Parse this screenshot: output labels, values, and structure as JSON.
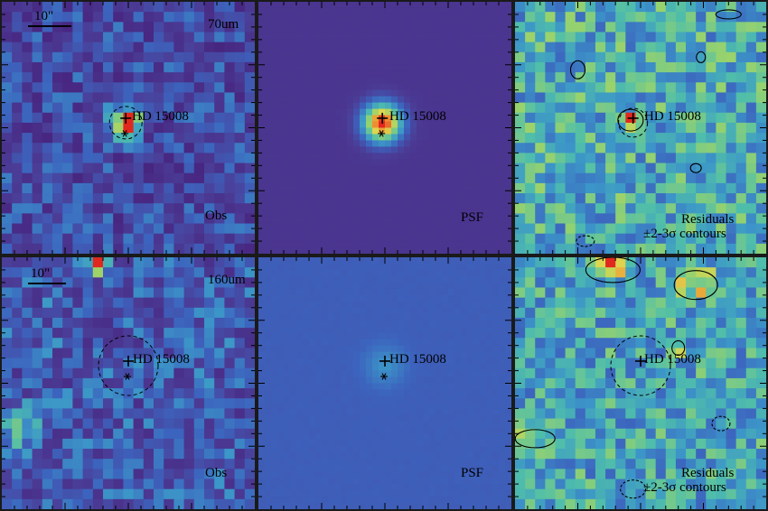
{
  "rows": [
    {
      "wavelength": "70um",
      "panels": [
        {
          "kind": "obs",
          "label": "Obs"
        },
        {
          "kind": "psf",
          "label": "PSF"
        },
        {
          "kind": "residual",
          "label_line1": "Residuals",
          "label_line2": "±2-3σ contours"
        }
      ]
    },
    {
      "wavelength": "160um",
      "panels": [
        {
          "kind": "obs",
          "label": "Obs"
        },
        {
          "kind": "psf",
          "label": "PSF"
        },
        {
          "kind": "residual",
          "label_line1": "Residuals",
          "label_line2": "±2-3σ contours"
        }
      ]
    }
  ],
  "scale_bar_label": "10\"",
  "star_label": "HD 15008",
  "colors": {
    "background_psf_70": "#3a4a9a",
    "background_psf_160": "#3f6fbf",
    "source_core": "#e0301e",
    "source_mid": "#f2a23a",
    "contour": "#000000"
  }
}
